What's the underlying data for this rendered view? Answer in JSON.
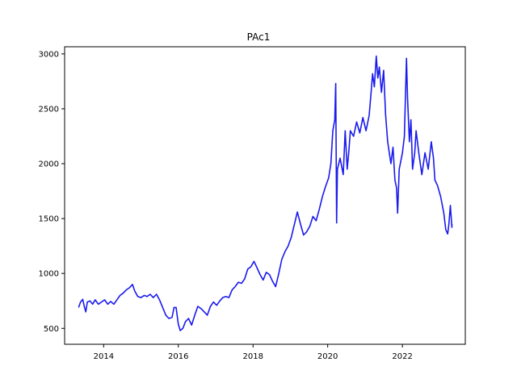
{
  "chart_data": {
    "type": "line",
    "title": "PAc1",
    "xlabel": "",
    "ylabel": "",
    "xlim": [
      "2012-12-15",
      "2023-09-08"
    ],
    "ylim": [
      355,
      3065
    ],
    "x_ticks": [
      "2014",
      "2016",
      "2018",
      "2020",
      "2022"
    ],
    "y_ticks": [
      "500",
      "1000",
      "1500",
      "2000",
      "2500",
      "3000"
    ],
    "grid": false,
    "series": [
      {
        "color": "#1a1aee",
        "points": [
          [
            "2013-05-01",
            690
          ],
          [
            "2013-05-20",
            740
          ],
          [
            "2013-06-10",
            765
          ],
          [
            "2013-06-25",
            700
          ],
          [
            "2013-07-10",
            650
          ],
          [
            "2013-07-25",
            740
          ],
          [
            "2013-08-20",
            750
          ],
          [
            "2013-09-15",
            720
          ],
          [
            "2013-10-10",
            760
          ],
          [
            "2013-11-10",
            720
          ],
          [
            "2013-12-10",
            740
          ],
          [
            "2014-01-10",
            760
          ],
          [
            "2014-02-10",
            720
          ],
          [
            "2014-03-10",
            745
          ],
          [
            "2014-04-10",
            720
          ],
          [
            "2014-05-10",
            760
          ],
          [
            "2014-06-10",
            800
          ],
          [
            "2014-07-10",
            820
          ],
          [
            "2014-08-10",
            850
          ],
          [
            "2014-09-10",
            870
          ],
          [
            "2014-10-10",
            900
          ],
          [
            "2014-11-01",
            840
          ],
          [
            "2014-12-01",
            790
          ],
          [
            "2015-01-01",
            780
          ],
          [
            "2015-02-01",
            800
          ],
          [
            "2015-03-01",
            790
          ],
          [
            "2015-04-01",
            810
          ],
          [
            "2015-05-01",
            780
          ],
          [
            "2015-06-01",
            810
          ],
          [
            "2015-07-01",
            760
          ],
          [
            "2015-08-01",
            690
          ],
          [
            "2015-09-01",
            620
          ],
          [
            "2015-10-01",
            590
          ],
          [
            "2015-11-01",
            600
          ],
          [
            "2015-11-20",
            690
          ],
          [
            "2015-12-10",
            690
          ],
          [
            "2016-01-01",
            540
          ],
          [
            "2016-01-20",
            480
          ],
          [
            "2016-02-15",
            500
          ],
          [
            "2016-03-10",
            560
          ],
          [
            "2016-04-10",
            590
          ],
          [
            "2016-05-10",
            530
          ],
          [
            "2016-06-10",
            620
          ],
          [
            "2016-07-10",
            700
          ],
          [
            "2016-08-10",
            680
          ],
          [
            "2016-09-10",
            650
          ],
          [
            "2016-10-10",
            620
          ],
          [
            "2016-11-10",
            700
          ],
          [
            "2016-12-10",
            740
          ],
          [
            "2017-01-10",
            710
          ],
          [
            "2017-02-10",
            750
          ],
          [
            "2017-03-10",
            780
          ],
          [
            "2017-04-10",
            790
          ],
          [
            "2017-05-10",
            780
          ],
          [
            "2017-06-10",
            850
          ],
          [
            "2017-07-10",
            880
          ],
          [
            "2017-08-10",
            920
          ],
          [
            "2017-09-10",
            910
          ],
          [
            "2017-10-10",
            950
          ],
          [
            "2017-11-10",
            1040
          ],
          [
            "2017-12-10",
            1060
          ],
          [
            "2018-01-10",
            1110
          ],
          [
            "2018-02-10",
            1050
          ],
          [
            "2018-03-10",
            990
          ],
          [
            "2018-04-10",
            940
          ],
          [
            "2018-05-10",
            1010
          ],
          [
            "2018-06-10",
            990
          ],
          [
            "2018-07-10",
            930
          ],
          [
            "2018-08-10",
            880
          ],
          [
            "2018-09-10",
            1000
          ],
          [
            "2018-10-10",
            1130
          ],
          [
            "2018-11-10",
            1200
          ],
          [
            "2018-12-10",
            1250
          ],
          [
            "2019-01-10",
            1330
          ],
          [
            "2019-02-10",
            1450
          ],
          [
            "2019-03-10",
            1560
          ],
          [
            "2019-04-10",
            1450
          ],
          [
            "2019-05-10",
            1350
          ],
          [
            "2019-06-10",
            1380
          ],
          [
            "2019-07-10",
            1430
          ],
          [
            "2019-08-10",
            1520
          ],
          [
            "2019-09-10",
            1480
          ],
          [
            "2019-10-10",
            1580
          ],
          [
            "2019-11-10",
            1700
          ],
          [
            "2019-12-10",
            1790
          ],
          [
            "2020-01-10",
            1870
          ],
          [
            "2020-02-01",
            2000
          ],
          [
            "2020-02-20",
            2300
          ],
          [
            "2020-03-10",
            2400
          ],
          [
            "2020-03-20",
            2730
          ],
          [
            "2020-03-28",
            1460
          ],
          [
            "2020-04-05",
            1950
          ],
          [
            "2020-05-01",
            2050
          ],
          [
            "2020-06-01",
            1900
          ],
          [
            "2020-06-20",
            2300
          ],
          [
            "2020-07-10",
            1950
          ],
          [
            "2020-07-25",
            2100
          ],
          [
            "2020-08-10",
            2300
          ],
          [
            "2020-09-10",
            2250
          ],
          [
            "2020-10-10",
            2380
          ],
          [
            "2020-11-10",
            2280
          ],
          [
            "2020-12-10",
            2420
          ],
          [
            "2021-01-10",
            2300
          ],
          [
            "2021-02-10",
            2440
          ],
          [
            "2021-03-01",
            2650
          ],
          [
            "2021-03-15",
            2820
          ],
          [
            "2021-04-01",
            2700
          ],
          [
            "2021-04-20",
            2980
          ],
          [
            "2021-05-05",
            2780
          ],
          [
            "2021-05-20",
            2880
          ],
          [
            "2021-06-10",
            2650
          ],
          [
            "2021-07-01",
            2850
          ],
          [
            "2021-07-20",
            2450
          ],
          [
            "2021-08-10",
            2200
          ],
          [
            "2021-09-10",
            2000
          ],
          [
            "2021-10-01",
            2150
          ],
          [
            "2021-10-20",
            1850
          ],
          [
            "2021-11-05",
            1780
          ],
          [
            "2021-11-15",
            1550
          ],
          [
            "2021-12-01",
            1950
          ],
          [
            "2022-01-01",
            2100
          ],
          [
            "2022-01-20",
            2250
          ],
          [
            "2022-02-10",
            2960
          ],
          [
            "2022-02-20",
            2600
          ],
          [
            "2022-03-10",
            2200
          ],
          [
            "2022-03-25",
            2400
          ],
          [
            "2022-04-10",
            1950
          ],
          [
            "2022-05-01",
            2100
          ],
          [
            "2022-05-15",
            2300
          ],
          [
            "2022-06-10",
            2100
          ],
          [
            "2022-07-10",
            1900
          ],
          [
            "2022-08-10",
            2100
          ],
          [
            "2022-09-10",
            1950
          ],
          [
            "2022-10-10",
            2200
          ],
          [
            "2022-11-01",
            2050
          ],
          [
            "2022-11-15",
            1850
          ],
          [
            "2022-12-10",
            1800
          ],
          [
            "2023-01-10",
            1700
          ],
          [
            "2023-02-10",
            1550
          ],
          [
            "2023-03-01",
            1400
          ],
          [
            "2023-03-20",
            1360
          ],
          [
            "2023-04-01",
            1450
          ],
          [
            "2023-04-15",
            1620
          ],
          [
            "2023-04-30",
            1420
          ],
          [
            "2023-05-01",
            1450
          ]
        ]
      }
    ]
  }
}
